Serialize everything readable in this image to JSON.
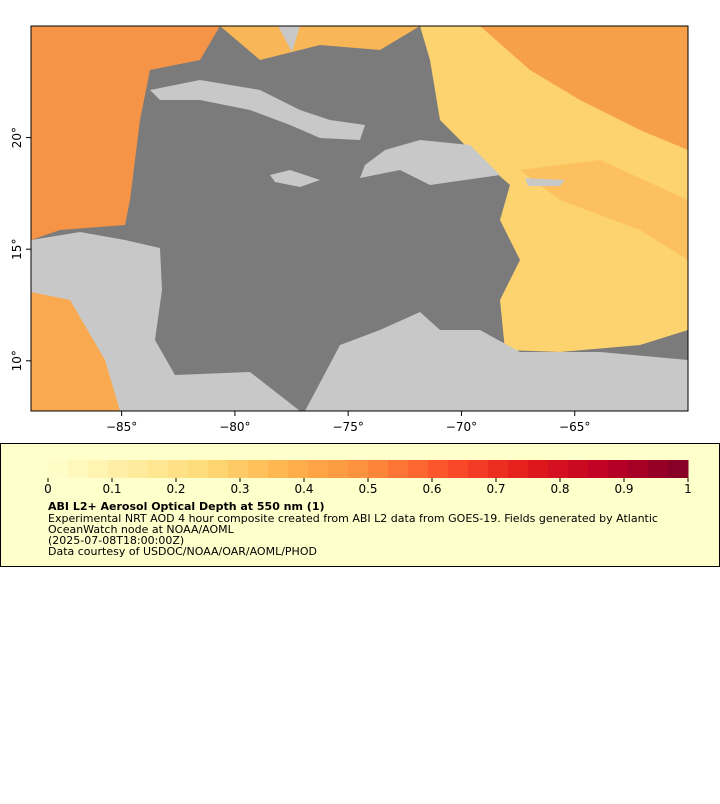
{
  "map": {
    "xlim": [
      -89,
      -60
    ],
    "ylim": [
      7.75,
      25
    ],
    "xticks": [
      {
        "value": -85,
        "label": "−85°"
      },
      {
        "value": -80,
        "label": "−80°"
      },
      {
        "value": -75,
        "label": "−75°"
      },
      {
        "value": -70,
        "label": "−70°"
      },
      {
        "value": -65,
        "label": "−65°"
      }
    ],
    "yticks": [
      {
        "value": 20,
        "label": "20°"
      },
      {
        "value": 15,
        "label": "15°"
      },
      {
        "value": 10,
        "label": "10°"
      }
    ]
  },
  "colorbar": {
    "lim": [
      0,
      1
    ],
    "ticks": [
      0,
      0.1,
      0.2,
      0.3,
      0.4,
      0.5,
      0.6,
      0.7,
      0.8,
      0.9,
      1
    ],
    "colors": [
      "#ffffcc",
      "#ffeda0",
      "#fed976",
      "#feb24c",
      "#fd8d3c",
      "#fc4e2a",
      "#e31a1c",
      "#bd0026",
      "#800026"
    ]
  },
  "legend": {
    "title": "ABI L2+ Aerosol Optical Depth at 550 nm (1)",
    "lines": [
      "Experimental NRT AOD 4 hour composite created from ABI L2 data from GOES-19. Fields generated by Atlantic",
      "OceanWatch node at NOAA/AOML",
      "(2025-07-08T18:00:00Z)",
      "Data courtesy of USDOC/NOAA/OAR/AOML/PHOD"
    ]
  }
}
